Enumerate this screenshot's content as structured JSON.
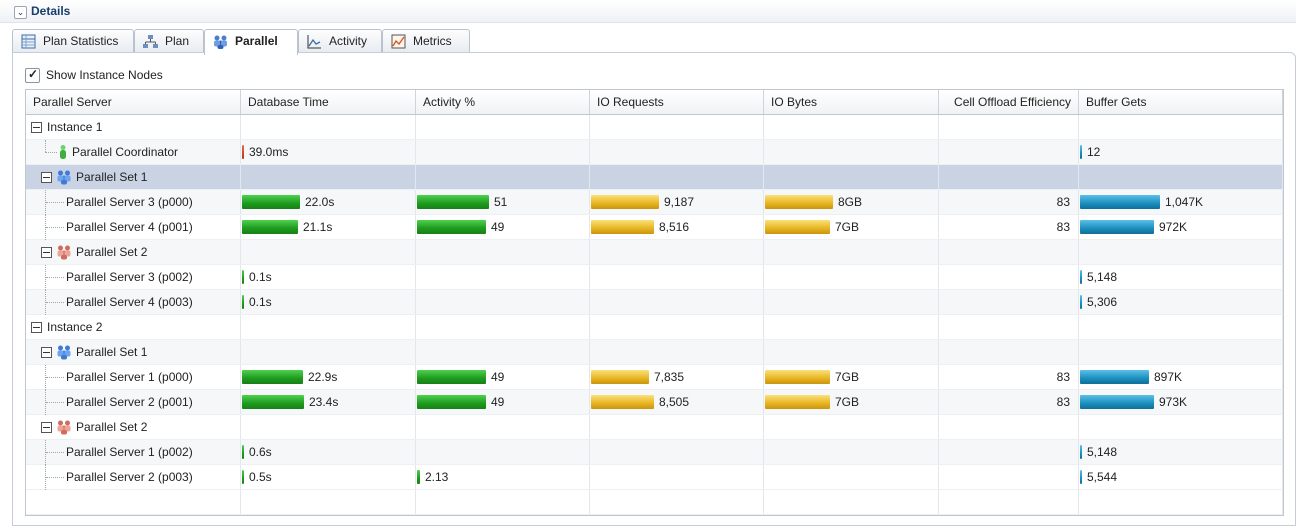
{
  "details": {
    "title": "Details"
  },
  "tabs": [
    {
      "label": "Plan Statistics",
      "icon": "table-icon",
      "active": false
    },
    {
      "label": "Plan",
      "icon": "tree-plan-icon",
      "active": false
    },
    {
      "label": "Parallel",
      "icon": "parallel-icon",
      "active": true
    },
    {
      "label": "Activity",
      "icon": "activity-chart-icon",
      "active": false
    },
    {
      "label": "Metrics",
      "icon": "metrics-chart-icon",
      "active": false
    }
  ],
  "show_instance_nodes": {
    "label": "Show Instance Nodes",
    "checked": true
  },
  "columns": [
    "Parallel Server",
    "Database Time",
    "Activity %",
    "IO Requests",
    "IO Bytes",
    "Cell Offload Efficiency",
    "Buffer Gets"
  ],
  "colors": {
    "green": "#1e9a1e",
    "gold": "#e7b421",
    "blue": "#1b8ebd",
    "red": "#b83218",
    "selected_row": "#c9d3e3"
  },
  "rows": [
    {
      "label": "Instance 1",
      "kind": "instance",
      "level": 0
    },
    {
      "label": "Parallel Coordinator",
      "kind": "coordinator",
      "level": 1,
      "db_time": "39.0ms",
      "db_time_frac": 0.03,
      "db_color": "red",
      "buffer_gets": "12",
      "buffer_frac": 0.02
    },
    {
      "label": "Parallel Set 1",
      "kind": "set1",
      "level": 1,
      "selected": true
    },
    {
      "label": "Parallel Server 3 (p000)",
      "kind": "server",
      "level": 2,
      "db_time": "22.0s",
      "db_time_frac": 0.94,
      "activity": "51",
      "activity_frac": 1.0,
      "io_requests": "9,187",
      "io_req_frac": 1.0,
      "io_bytes": "8GB",
      "io_bytes_frac": 1.0,
      "cell_offload": "83",
      "buffer_gets": "1,047K",
      "buffer_frac": 1.0
    },
    {
      "label": "Parallel Server 4 (p001)",
      "kind": "server",
      "level": 2,
      "db_time": "21.1s",
      "db_time_frac": 0.9,
      "activity": "49",
      "activity_frac": 0.96,
      "io_requests": "8,516",
      "io_req_frac": 0.93,
      "io_bytes": "7GB",
      "io_bytes_frac": 0.96,
      "cell_offload": "83",
      "buffer_gets": "972K",
      "buffer_frac": 0.93
    },
    {
      "label": "Parallel Set 2",
      "kind": "set2",
      "level": 1
    },
    {
      "label": "Parallel Server 3 (p002)",
      "kind": "server",
      "level": 2,
      "db_time": "0.1s",
      "db_time_frac": 0.004,
      "buffer_gets": "5,148",
      "buffer_frac": 0.005
    },
    {
      "label": "Parallel Server 4 (p003)",
      "kind": "server",
      "level": 2,
      "db_time": "0.1s",
      "db_time_frac": 0.004,
      "buffer_gets": "5,306",
      "buffer_frac": 0.005
    },
    {
      "label": "Instance 2",
      "kind": "instance",
      "level": 0
    },
    {
      "label": "Parallel Set 1",
      "kind": "set1",
      "level": 1
    },
    {
      "label": "Parallel Server 1 (p000)",
      "kind": "server",
      "level": 2,
      "db_time": "22.9s",
      "db_time_frac": 0.98,
      "activity": "49",
      "activity_frac": 0.96,
      "io_requests": "7,835",
      "io_req_frac": 0.85,
      "io_bytes": "7GB",
      "io_bytes_frac": 0.96,
      "cell_offload": "83",
      "buffer_gets": "897K",
      "buffer_frac": 0.86
    },
    {
      "label": "Parallel Server 2 (p001)",
      "kind": "server",
      "level": 2,
      "db_time": "23.4s",
      "db_time_frac": 1.0,
      "activity": "49",
      "activity_frac": 0.96,
      "io_requests": "8,505",
      "io_req_frac": 0.93,
      "io_bytes": "7GB",
      "io_bytes_frac": 0.96,
      "cell_offload": "83",
      "buffer_gets": "973K",
      "buffer_frac": 0.93
    },
    {
      "label": "Parallel Set 2",
      "kind": "set2",
      "level": 1
    },
    {
      "label": "Parallel Server 1 (p002)",
      "kind": "server",
      "level": 2,
      "db_time": "0.6s",
      "db_time_frac": 0.025,
      "buffer_gets": "5,148",
      "buffer_frac": 0.005
    },
    {
      "label": "Parallel Server 2 (p003)",
      "kind": "server",
      "level": 2,
      "db_time": "0.5s",
      "db_time_frac": 0.02,
      "activity": "2.13",
      "activity_frac": 0.04,
      "buffer_gets": "5,544",
      "buffer_frac": 0.005
    }
  ]
}
